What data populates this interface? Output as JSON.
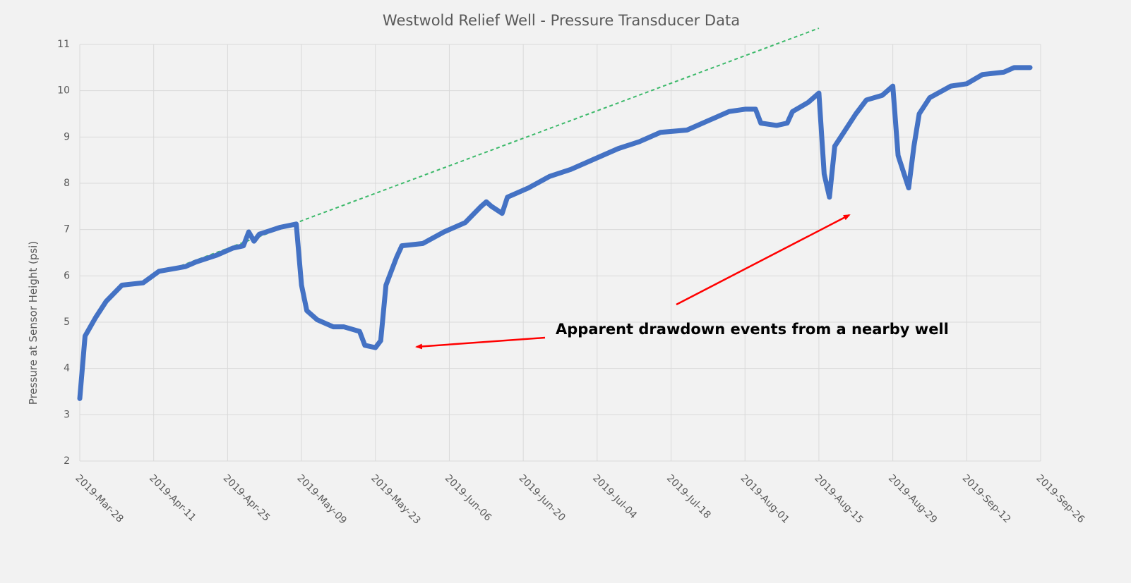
{
  "chart_data": {
    "type": "line",
    "title": "Westwold Relief Well - Pressure Transducer Data",
    "y_label": "Pressure at Sensor Height (psi)",
    "annotation": "Apparent drawdown events from a nearby well",
    "color": "#4472c4",
    "x": [
      "2019-03-28",
      "2019-03-29",
      "2019-03-31",
      "2019-04-02",
      "2019-04-05",
      "2019-04-09",
      "2019-04-12",
      "2019-04-17",
      "2019-04-19",
      "2019-04-23",
      "2019-04-26",
      "2019-04-28",
      "2019-04-29",
      "2019-04-30",
      "2019-05-01",
      "2019-05-05",
      "2019-05-08",
      "2019-05-09",
      "2019-05-10",
      "2019-05-12",
      "2019-05-15",
      "2019-05-17",
      "2019-05-20",
      "2019-05-21",
      "2019-05-23",
      "2019-05-24",
      "2019-05-25",
      "2019-05-26",
      "2019-05-27",
      "2019-05-28",
      "2019-06-01",
      "2019-06-05",
      "2019-06-09",
      "2019-06-12",
      "2019-06-13",
      "2019-06-14",
      "2019-06-16",
      "2019-06-17",
      "2019-06-21",
      "2019-06-25",
      "2019-06-29",
      "2019-07-04",
      "2019-07-08",
      "2019-07-12",
      "2019-07-16",
      "2019-07-21",
      "2019-07-25",
      "2019-07-29",
      "2019-08-01",
      "2019-08-03",
      "2019-08-04",
      "2019-08-07",
      "2019-08-09",
      "2019-08-10",
      "2019-08-13",
      "2019-08-15",
      "2019-08-16",
      "2019-08-17",
      "2019-08-18",
      "2019-08-20",
      "2019-08-22",
      "2019-08-24",
      "2019-08-27",
      "2019-08-29",
      "2019-08-30",
      "2019-09-01",
      "2019-09-02",
      "2019-09-03",
      "2019-09-05",
      "2019-09-09",
      "2019-09-12",
      "2019-09-15",
      "2019-09-19",
      "2019-09-21",
      "2019-09-24"
    ],
    "values": [
      3.35,
      4.7,
      5.1,
      5.45,
      5.8,
      5.85,
      6.1,
      6.2,
      6.3,
      6.45,
      6.6,
      6.65,
      6.95,
      6.75,
      6.9,
      7.05,
      7.12,
      5.8,
      5.25,
      5.05,
      4.9,
      4.9,
      4.8,
      4.5,
      4.45,
      4.6,
      5.8,
      6.1,
      6.4,
      6.65,
      6.7,
      6.95,
      7.15,
      7.5,
      7.6,
      7.5,
      7.35,
      7.7,
      7.9,
      8.15,
      8.3,
      8.55,
      8.75,
      8.9,
      9.1,
      9.15,
      9.35,
      9.55,
      9.6,
      9.6,
      9.3,
      9.25,
      9.3,
      9.55,
      9.75,
      9.95,
      8.2,
      7.7,
      8.8,
      9.15,
      9.5,
      9.8,
      9.9,
      10.1,
      8.6,
      7.9,
      8.8,
      9.5,
      9.85,
      10.1,
      10.15,
      10.35,
      10.4,
      10.5,
      10.5
    ],
    "trend": {
      "x": [
        "2019-04-15",
        "2019-08-15"
      ],
      "values": [
        6.17,
        11.35
      ],
      "color": "#3cb96a"
    },
    "xlim": [
      "2019-03-28",
      "2019-09-26"
    ],
    "xticks": [
      {
        "value": "2019-03-28",
        "label": "2019-Mar-28"
      },
      {
        "value": "2019-04-11",
        "label": "2019-Apr-11"
      },
      {
        "value": "2019-04-25",
        "label": "2019-Apr-25"
      },
      {
        "value": "2019-05-09",
        "label": "2019-May-09"
      },
      {
        "value": "2019-05-23",
        "label": "2019-May-23"
      },
      {
        "value": "2019-06-06",
        "label": "2019-Jun-06"
      },
      {
        "value": "2019-06-20",
        "label": "2019-Jun-20"
      },
      {
        "value": "2019-07-04",
        "label": "2019-Jul-04"
      },
      {
        "value": "2019-07-18",
        "label": "2019-Jul-18"
      },
      {
        "value": "2019-08-01",
        "label": "2019-Aug-01"
      },
      {
        "value": "2019-08-15",
        "label": "2019-Aug-15"
      },
      {
        "value": "2019-08-29",
        "label": "2019-Aug-29"
      },
      {
        "value": "2019-09-12",
        "label": "2019-Sep-12"
      },
      {
        "value": "2019-09-26",
        "label": "2019-Sep-26"
      }
    ],
    "ylim": [
      2,
      11
    ],
    "yticks": [
      2,
      3,
      4,
      5,
      6,
      7,
      8,
      9,
      10,
      11
    ],
    "grid": true
  }
}
